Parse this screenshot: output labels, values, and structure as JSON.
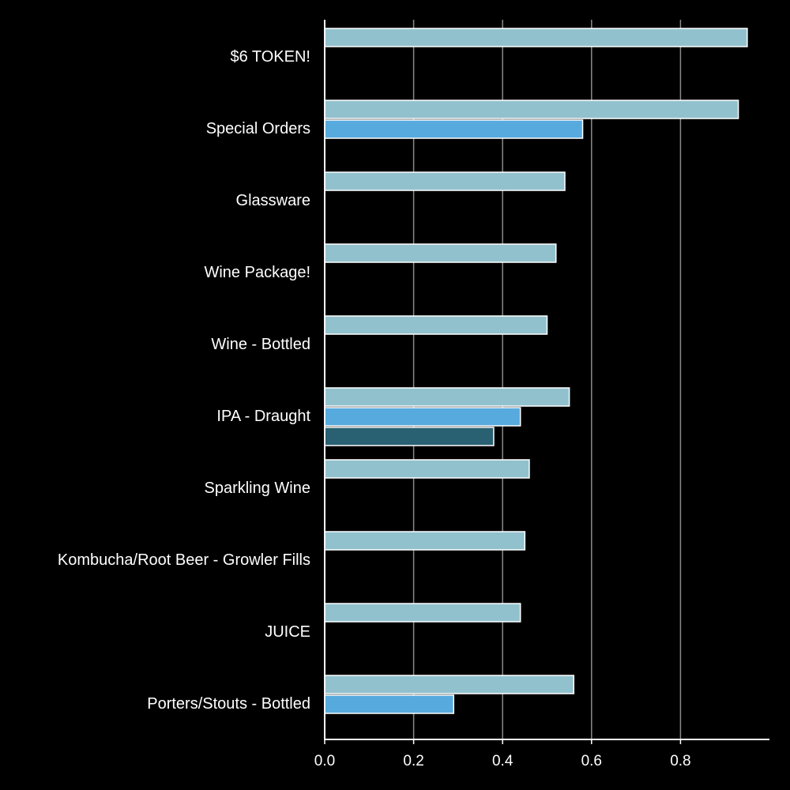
{
  "chart_data": {
    "type": "bar",
    "orientation": "horizontal",
    "title": "",
    "xlabel": "",
    "ylabel": "",
    "xlim": [
      0,
      1.0
    ],
    "grid": "vertical",
    "x_ticks": [
      {
        "value": 0.0,
        "label": "0.0"
      },
      {
        "value": 0.2,
        "label": "0.2"
      },
      {
        "value": 0.4,
        "label": "0.4"
      },
      {
        "value": 0.6,
        "label": "0.6"
      },
      {
        "value": 0.8,
        "label": "0.8"
      }
    ],
    "categories": [
      "$6 TOKEN!",
      "Special Orders",
      "Glassware",
      "Wine Package!",
      "Wine - Bottled",
      "IPA - Draught",
      "Sparkling Wine",
      "Kombucha/Root Beer - Growler Fills",
      "JUICE",
      "Porters/Stouts - Bottled"
    ],
    "series": [
      {
        "color": "#92c1ce",
        "values": [
          0.95,
          0.93,
          0.54,
          0.52,
          0.5,
          0.55,
          0.46,
          0.45,
          0.44,
          0.56
        ]
      },
      {
        "color": "#57aade",
        "values": [
          null,
          0.58,
          null,
          null,
          null,
          0.44,
          null,
          null,
          null,
          0.29
        ]
      },
      {
        "color": "#296172",
        "values": [
          null,
          null,
          null,
          null,
          null,
          0.38,
          null,
          null,
          null,
          null
        ]
      }
    ]
  }
}
